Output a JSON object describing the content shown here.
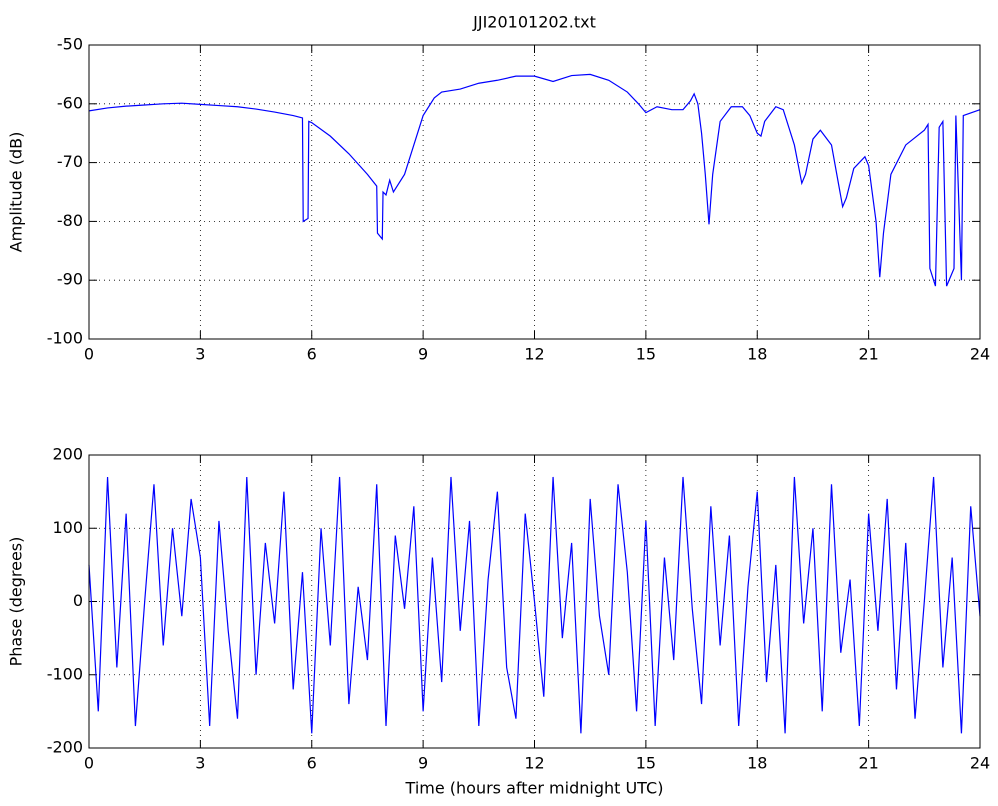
{
  "chart_data": [
    {
      "type": "line",
      "title": "JJI20101202.txt",
      "y_label": "Amplitude (dB)",
      "color": "#0000ff",
      "grid": true,
      "xlim": [
        0,
        24
      ],
      "xticks": [
        0,
        3,
        6,
        9,
        12,
        15,
        18,
        21,
        24
      ],
      "ylim": [
        -100,
        -50
      ],
      "yticks": [
        -100,
        -90,
        -80,
        -70,
        -60,
        -50
      ],
      "x": [
        0,
        0.5,
        1,
        1.5,
        2,
        2.5,
        3,
        3.5,
        4,
        4.5,
        5,
        5.5,
        5.75,
        5.77,
        5.9,
        5.92,
        6,
        6.5,
        7,
        7.5,
        7.75,
        7.77,
        7.9,
        7.92,
        8,
        8.1,
        8.2,
        8.5,
        8.8,
        9,
        9.3,
        9.5,
        10,
        10.5,
        11,
        11.5,
        12,
        12.5,
        13,
        13.5,
        14,
        14.5,
        14.8,
        15,
        15.3,
        15.7,
        16,
        16.2,
        16.3,
        16.4,
        16.5,
        16.6,
        16.7,
        16.8,
        17,
        17.3,
        17.6,
        17.8,
        18,
        18.1,
        18.2,
        18.5,
        18.7,
        19,
        19.2,
        19.3,
        19.5,
        19.7,
        20,
        20.2,
        20.3,
        20.4,
        20.6,
        20.9,
        21,
        21.2,
        21.3,
        21.4,
        21.6,
        22,
        22.5,
        22.6,
        22.65,
        22.8,
        22.9,
        23,
        23.1,
        23.3,
        23.35,
        23.5,
        23.55,
        24
      ],
      "values": [
        -61.2,
        -60.7,
        -60.4,
        -60.2,
        -60.0,
        -59.9,
        -60.1,
        -60.3,
        -60.5,
        -60.9,
        -61.4,
        -62,
        -62.4,
        -80,
        -79.5,
        -63,
        -63.2,
        -65.5,
        -68.5,
        -72,
        -74,
        -82,
        -83,
        -75,
        -75.5,
        -73,
        -75,
        -72,
        -66,
        -62,
        -59,
        -58,
        -57.5,
        -56.5,
        -56,
        -55.3,
        -55.3,
        -56.2,
        -55.2,
        -55,
        -56,
        -58,
        -60,
        -61.5,
        -60.5,
        -61,
        -61,
        -59.5,
        -58.3,
        -60,
        -65,
        -72,
        -80.5,
        -72,
        -63,
        -60.5,
        -60.5,
        -62,
        -65,
        -65.5,
        -63,
        -60.5,
        -61,
        -67,
        -73.5,
        -72,
        -66,
        -64.5,
        -67,
        -74,
        -77.5,
        -76,
        -71,
        -69,
        -70.5,
        -80,
        -89.5,
        -82,
        -72,
        -67,
        -64.5,
        -63.5,
        -88,
        -91,
        -64,
        -63,
        -91,
        -88,
        -62,
        -90,
        -62,
        -61
      ]
    },
    {
      "type": "line",
      "x_label": "Time (hours after midnight UTC)",
      "y_label": "Phase (degrees)",
      "color": "#0000ff",
      "grid": true,
      "xlim": [
        0,
        24
      ],
      "xticks": [
        0,
        3,
        6,
        9,
        12,
        15,
        18,
        21,
        24
      ],
      "ylim": [
        -200,
        200
      ],
      "yticks": [
        -200,
        -100,
        0,
        100,
        200
      ],
      "x": [
        0,
        0.25,
        0.5,
        0.75,
        1,
        1.25,
        1.5,
        1.75,
        2,
        2.25,
        2.5,
        2.75,
        3,
        3.25,
        3.5,
        3.75,
        4,
        4.25,
        4.5,
        4.75,
        5,
        5.25,
        5.5,
        5.75,
        6,
        6.25,
        6.5,
        6.75,
        7,
        7.25,
        7.5,
        7.75,
        8,
        8.25,
        8.5,
        8.75,
        9,
        9.25,
        9.5,
        9.75,
        10,
        10.25,
        10.5,
        10.75,
        11,
        11.25,
        11.5,
        11.75,
        12,
        12.25,
        12.5,
        12.75,
        13,
        13.25,
        13.5,
        13.75,
        14,
        14.25,
        14.5,
        14.75,
        15,
        15.25,
        15.5,
        15.75,
        16,
        16.25,
        16.5,
        16.75,
        17,
        17.25,
        17.5,
        17.75,
        18,
        18.25,
        18.5,
        18.75,
        19,
        19.25,
        19.5,
        19.75,
        20,
        20.25,
        20.5,
        20.75,
        21,
        21.25,
        21.5,
        21.75,
        22,
        22.25,
        22.5,
        22.75,
        23,
        23.25,
        23.5,
        23.75,
        24
      ],
      "values": [
        50,
        -150,
        170,
        -90,
        120,
        -170,
        0,
        160,
        -60,
        100,
        -20,
        140,
        60,
        -170,
        110,
        -40,
        -160,
        170,
        -100,
        80,
        -30,
        150,
        -120,
        40,
        -180,
        100,
        -60,
        170,
        -140,
        20,
        -80,
        160,
        -170,
        90,
        -10,
        130,
        -150,
        60,
        -110,
        170,
        -40,
        110,
        -170,
        30,
        150,
        -90,
        -160,
        120,
        0,
        -130,
        170,
        -50,
        80,
        -180,
        140,
        -20,
        -100,
        160,
        40,
        -150,
        110,
        -170,
        60,
        -80,
        170,
        -10,
        -140,
        130,
        -60,
        90,
        -170,
        20,
        150,
        -110,
        50,
        -180,
        170,
        -30,
        100,
        -150,
        160,
        -70,
        30,
        -170,
        120,
        -40,
        140,
        -120,
        80,
        -160,
        0,
        170,
        -90,
        60,
        -180,
        130,
        -20
      ]
    }
  ]
}
